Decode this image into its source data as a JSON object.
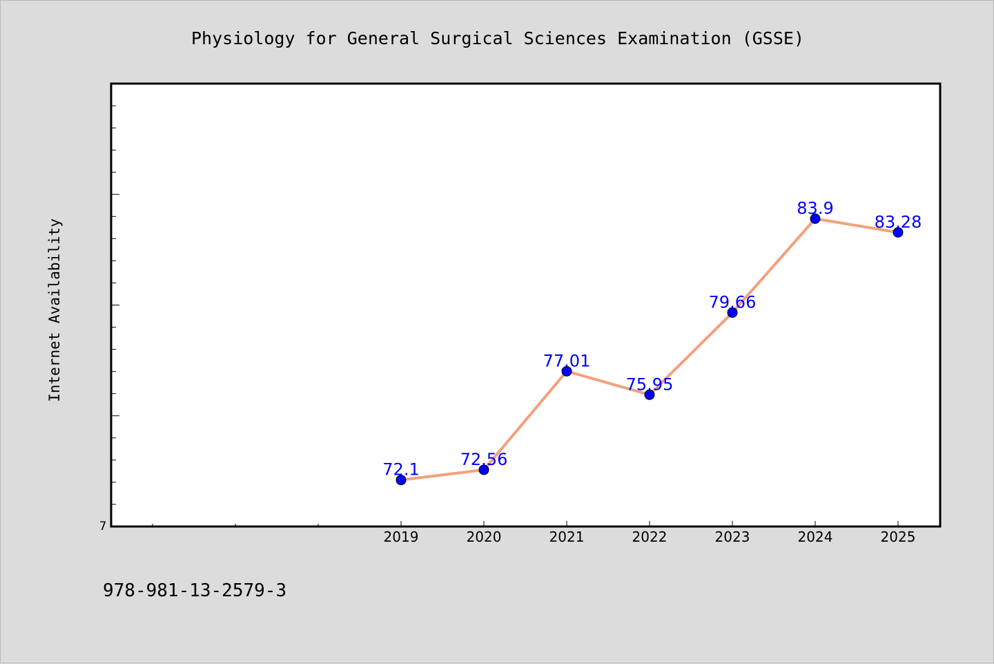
{
  "chart_data": {
    "type": "line",
    "title": "Physiology for General Surgical Sciences Examination (GSSE)",
    "xlabel": "",
    "ylabel": "Internet Availability",
    "categories": [
      "2019",
      "2020",
      "2021",
      "2022",
      "2023",
      "2024",
      "2025"
    ],
    "values": [
      72.1,
      72.56,
      77.01,
      75.95,
      79.66,
      83.9,
      83.28
    ],
    "data_labels": [
      "72.1",
      "72.56",
      "77.01",
      "75.95",
      "79.66",
      "83.9",
      "83.28"
    ],
    "y_tick_labels": [
      "7"
    ],
    "ylim": [
      70,
      90
    ],
    "grid": false,
    "line_color": "#f4a07c",
    "marker_color": "#0000ff",
    "label_color": "#0000ff"
  },
  "footnote": "978-981-13-2579-3"
}
